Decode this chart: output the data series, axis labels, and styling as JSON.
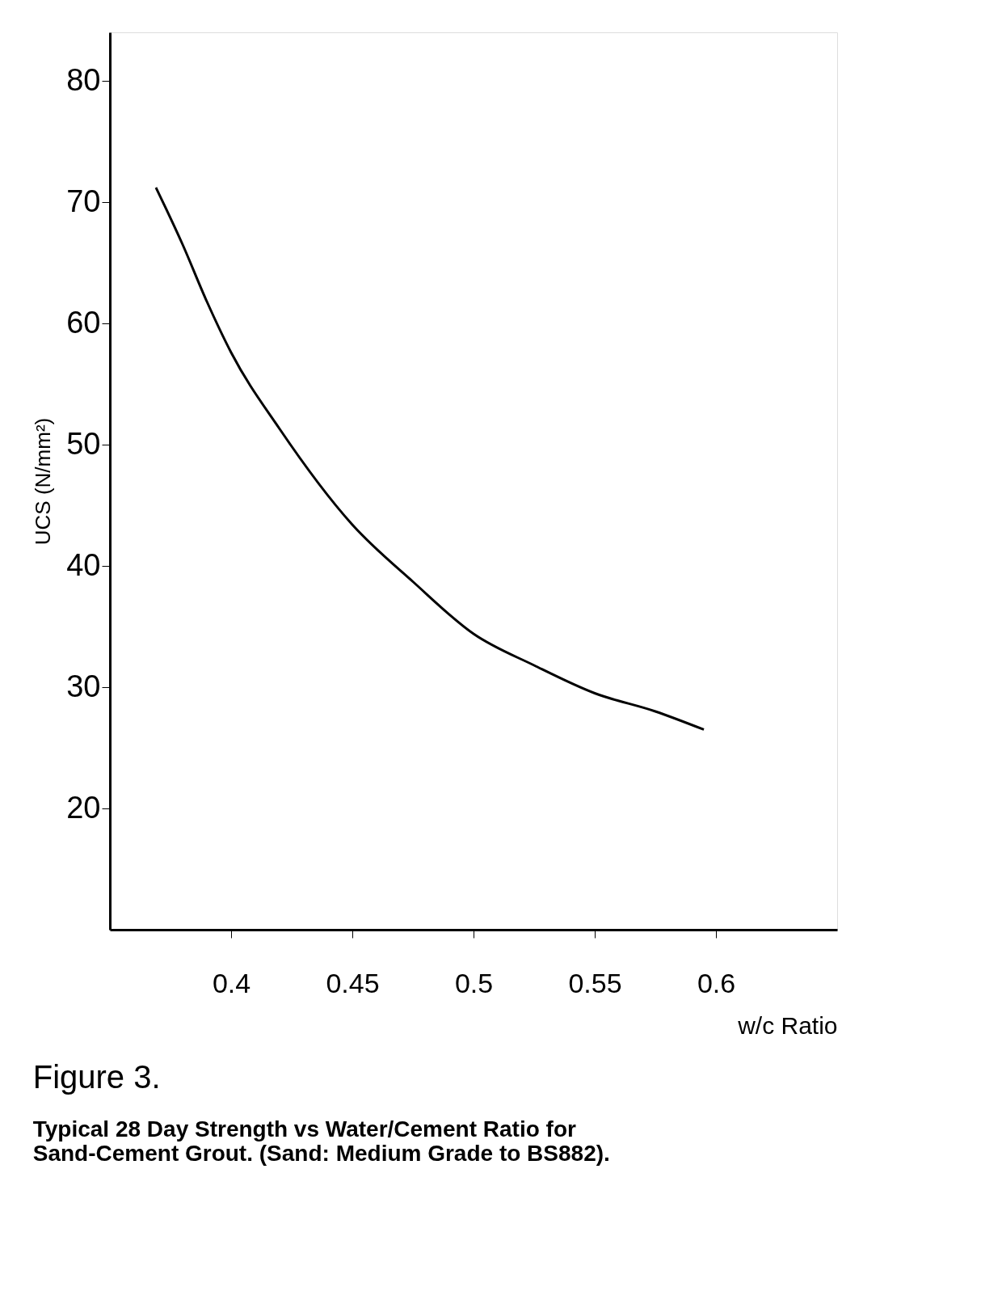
{
  "chart_data": {
    "type": "line",
    "xlabel": "w/c Ratio",
    "ylabel": "UCS (N/mm²)",
    "x": [
      0.369,
      0.38,
      0.39,
      0.4,
      0.42,
      0.45,
      0.475,
      0.5,
      0.525,
      0.55,
      0.575,
      0.595
    ],
    "series": [
      {
        "color": "#000000",
        "values": [
          71.2,
          66.5,
          61.8,
          57.6,
          51.3,
          43.4,
          38.7,
          34.4,
          31.8,
          29.5,
          28.0,
          26.5
        ]
      }
    ],
    "xlim": [
      0.35,
      0.65
    ],
    "ylim": [
      10,
      84
    ],
    "xticks": [
      0.4,
      0.45,
      0.5,
      0.55,
      0.6
    ],
    "yticks": [
      20,
      30,
      40,
      50,
      60,
      70,
      80
    ],
    "grid": false,
    "marker": "none",
    "line_style": "solid",
    "annotations": [
      "Figure 3.",
      "Typical 28 Day Strength vs Water/Cement Ratio for Sand-Cement Grout. (Sand: Medium Grade to BS882)."
    ]
  }
}
